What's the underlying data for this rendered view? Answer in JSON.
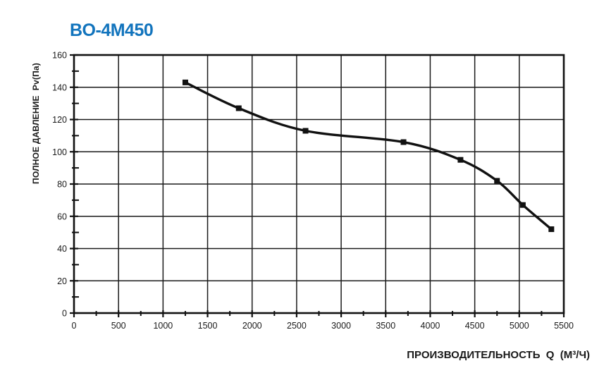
{
  "page": {
    "background": "#ffffff"
  },
  "chart_data": {
    "type": "line",
    "title": "BO-4M450",
    "title_color": "#1274bd",
    "xlabel": "ПРОИЗВОДИТЕЛЬНОСТЬ  Q  (М³/Ч)",
    "ylabel": "ПОЛНОЕ ДАВЛЕНИЕ  Pv(Па)",
    "xlim": [
      0,
      5500
    ],
    "ylim": [
      0,
      160
    ],
    "x_ticks": [
      0,
      500,
      1000,
      1500,
      2000,
      2500,
      3000,
      3500,
      4000,
      4500,
      5000,
      5500
    ],
    "x_minor_step": 250,
    "y_ticks": [
      0,
      20,
      40,
      60,
      80,
      100,
      120,
      140,
      160
    ],
    "y_minor_step": 10,
    "grid": {
      "vertical_every": 500,
      "horizontal_every": 20,
      "on": true,
      "color": "#1a1a1a"
    },
    "axis_color": "#111111",
    "legend": "none",
    "series": [
      {
        "name": "BO-4M450",
        "color": "#111111",
        "marker": "square",
        "smooth": true,
        "points": [
          [
            1250,
            143
          ],
          [
            1850,
            127
          ],
          [
            2600,
            113
          ],
          [
            3700,
            106
          ],
          [
            4340,
            95
          ],
          [
            4750,
            82
          ],
          [
            5040,
            67
          ],
          [
            5360,
            52
          ]
        ]
      }
    ]
  }
}
